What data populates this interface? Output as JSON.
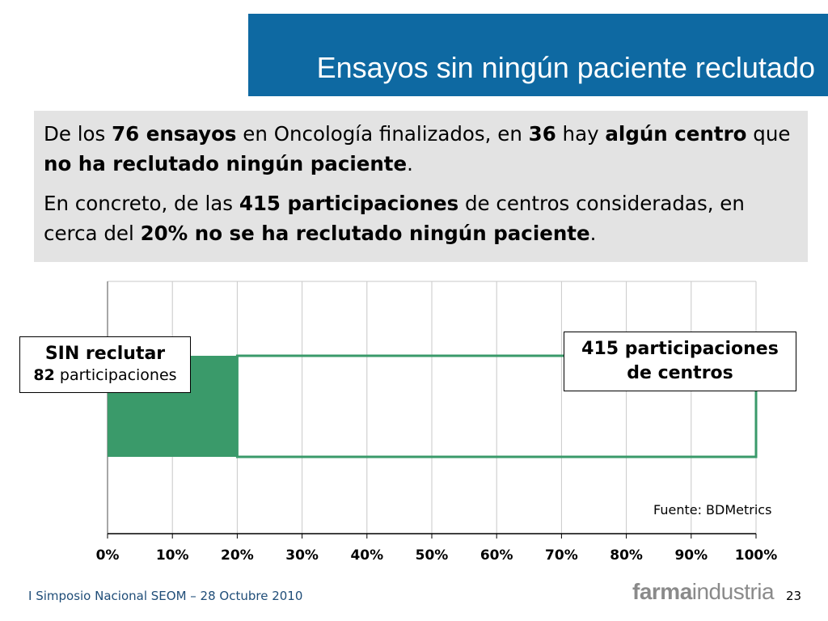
{
  "slide": {
    "title": "Ensayos sin ningún paciente reclutado",
    "paragraph1": [
      {
        "text": "De los ",
        "bold": false
      },
      {
        "text": "76 ensayos",
        "bold": true
      },
      {
        "text": " en Oncología finalizados, en ",
        "bold": false
      },
      {
        "text": "36",
        "bold": true
      },
      {
        "text": " hay ",
        "bold": false
      },
      {
        "text": "algún centro",
        "bold": true
      },
      {
        "text": " que ",
        "bold": false
      },
      {
        "text": "no ha reclutado ningún paciente",
        "bold": true
      },
      {
        "text": ".",
        "bold": false
      }
    ],
    "paragraph2": [
      {
        "text": "En concreto, de las ",
        "bold": false
      },
      {
        "text": "415 participaciones",
        "bold": true
      },
      {
        "text": " de centros consideradas, en cerca del ",
        "bold": false
      },
      {
        "text": "20% no se ha reclutado ningún paciente",
        "bold": true
      },
      {
        "text": ".",
        "bold": false
      }
    ],
    "source": "Fuente: BDMetrics",
    "footer_left": "I Simposio Nacional SEOM – 28 Octubre 2010",
    "logo_part1": "farma",
    "logo_part2": "industria",
    "page_number": "23",
    "colors": {
      "title_bar": "#0e69a2",
      "text_box": "#e3e3e3",
      "bar_green": "#3a9a6a"
    }
  },
  "callouts": {
    "left_line1": "SIN reclutar",
    "left_count": "82",
    "left_line2": " participaciones",
    "right_line1": "415 participaciones",
    "right_line2": "de centros"
  },
  "chart_data": {
    "type": "bar",
    "orientation": "horizontal",
    "xlim": [
      0,
      100
    ],
    "x_unit": "%",
    "xticks": [
      "0%",
      "10%",
      "20%",
      "30%",
      "40%",
      "50%",
      "60%",
      "70%",
      "80%",
      "90%",
      "100%"
    ],
    "grid": true,
    "bars": [
      {
        "name": "SIN reclutar",
        "start": 0,
        "end": 20,
        "style": "filled"
      },
      {
        "name": "415 participaciones de centros",
        "start": 20,
        "end": 100,
        "style": "outline"
      }
    ]
  }
}
